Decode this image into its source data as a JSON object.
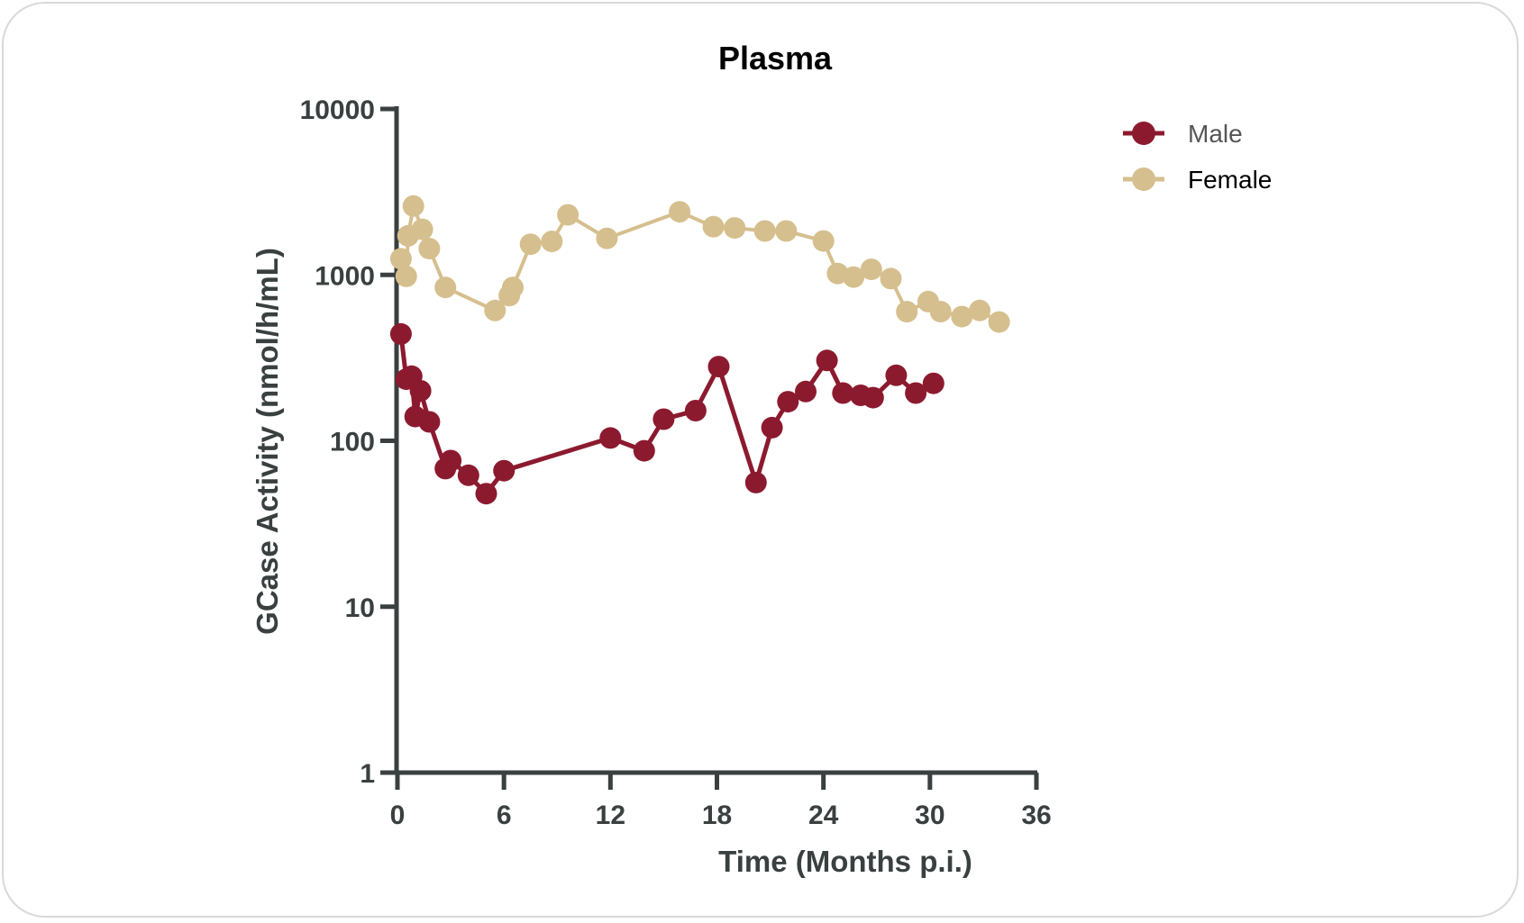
{
  "chart_data": {
    "type": "line",
    "title": "Plasma",
    "xlabel": "Time (Months p.i.)",
    "ylabel": "GCase Activity (nmol/h/mL)",
    "x_scale": "linear",
    "y_scale": "log",
    "xlim": [
      0,
      36
    ],
    "ylim": [
      1,
      10000
    ],
    "x_ticks": [
      0,
      6,
      12,
      18,
      24,
      30,
      36
    ],
    "x_tick_labels": [
      "0",
      "6",
      "12",
      "18",
      "24",
      "30",
      "36"
    ],
    "y_ticks": [
      1,
      10,
      100,
      1000,
      10000
    ],
    "y_tick_labels": [
      "1",
      "10",
      "100",
      "1000",
      "10000"
    ],
    "grid": false,
    "legend_position": "top-right",
    "series": [
      {
        "name": "Male",
        "color": "#8c1a2f",
        "points": [
          [
            0.2,
            440
          ],
          [
            0.5,
            235
          ],
          [
            0.8,
            245
          ],
          [
            1.0,
            140
          ],
          [
            1.3,
            200
          ],
          [
            1.8,
            130
          ],
          [
            2.7,
            68
          ],
          [
            3.0,
            76
          ],
          [
            4.0,
            62
          ],
          [
            5.0,
            48
          ],
          [
            6.0,
            66
          ],
          [
            12.0,
            104
          ],
          [
            13.9,
            87
          ],
          [
            15.0,
            135
          ],
          [
            16.8,
            152
          ],
          [
            18.1,
            280
          ],
          [
            20.2,
            56
          ],
          [
            21.1,
            120
          ],
          [
            22.0,
            172
          ],
          [
            23.0,
            198
          ],
          [
            24.2,
            305
          ],
          [
            25.1,
            194
          ],
          [
            26.1,
            188
          ],
          [
            26.8,
            182
          ],
          [
            28.1,
            248
          ],
          [
            29.2,
            194
          ],
          [
            30.2,
            222
          ]
        ]
      },
      {
        "name": "Female",
        "color": "#d6bf8e",
        "points": [
          [
            0.2,
            1250
          ],
          [
            0.5,
            980
          ],
          [
            0.6,
            1720
          ],
          [
            0.9,
            2600
          ],
          [
            1.4,
            1880
          ],
          [
            1.8,
            1440
          ],
          [
            2.7,
            840
          ],
          [
            5.5,
            610
          ],
          [
            6.3,
            750
          ],
          [
            6.5,
            840
          ],
          [
            7.5,
            1530
          ],
          [
            8.7,
            1590
          ],
          [
            9.6,
            2300
          ],
          [
            11.8,
            1660
          ],
          [
            15.9,
            2400
          ],
          [
            17.8,
            1950
          ],
          [
            19.0,
            1920
          ],
          [
            20.7,
            1840
          ],
          [
            21.9,
            1840
          ],
          [
            24.0,
            1600
          ],
          [
            24.8,
            1020
          ],
          [
            25.7,
            970
          ],
          [
            26.7,
            1080
          ],
          [
            27.8,
            950
          ],
          [
            28.7,
            600
          ],
          [
            29.9,
            690
          ],
          [
            30.6,
            600
          ],
          [
            31.8,
            560
          ],
          [
            32.8,
            610
          ],
          [
            33.9,
            520
          ]
        ]
      }
    ]
  }
}
